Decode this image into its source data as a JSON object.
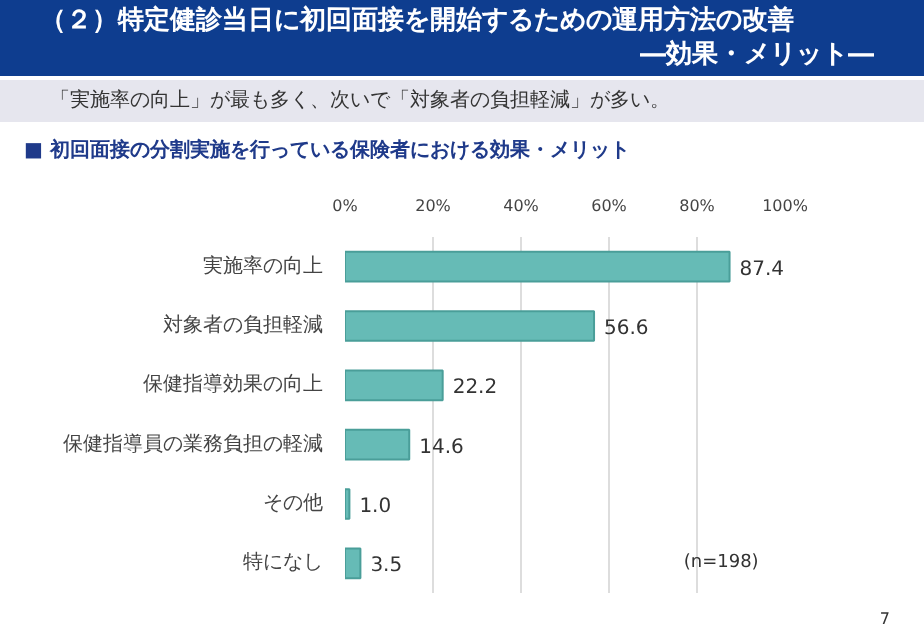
{
  "chart_data": {
    "type": "bar",
    "orientation": "horizontal",
    "title": "（２）特定健診当日に初回面接を開始するための運用方法の改善\n―効果・メリット―",
    "subtitle": "「実施率の向上」が最も多く、次いで「対象者の負担軽減」が多い。",
    "annotations": [
      "■ 初回面接の分割実施を行っている保険者における効果・メリット",
      "(n=198)",
      "7"
    ],
    "categories": [
      "実施率の向上",
      "対象者の負担軽減",
      "保健指導効果の向上",
      "保健指導員の業務負担の軽減",
      "その他",
      "特になし"
    ],
    "values": [
      87.4,
      56.6,
      22.2,
      14.6,
      1.0,
      3.5
    ],
    "value_labels": [
      "87.4",
      "56.6",
      "22.2",
      "14.6",
      "1.0",
      "3.5"
    ],
    "color": "#66bbb6",
    "xlim": [
      0,
      100
    ],
    "xticks": [
      {
        "value": 0,
        "label": "0%"
      },
      {
        "value": 20,
        "label": "20%"
      },
      {
        "value": 40,
        "label": "40%"
      },
      {
        "value": 60,
        "label": "60%"
      },
      {
        "value": 80,
        "label": "80%"
      },
      {
        "value": 100,
        "label": "100%"
      }
    ],
    "grid": "x"
  }
}
